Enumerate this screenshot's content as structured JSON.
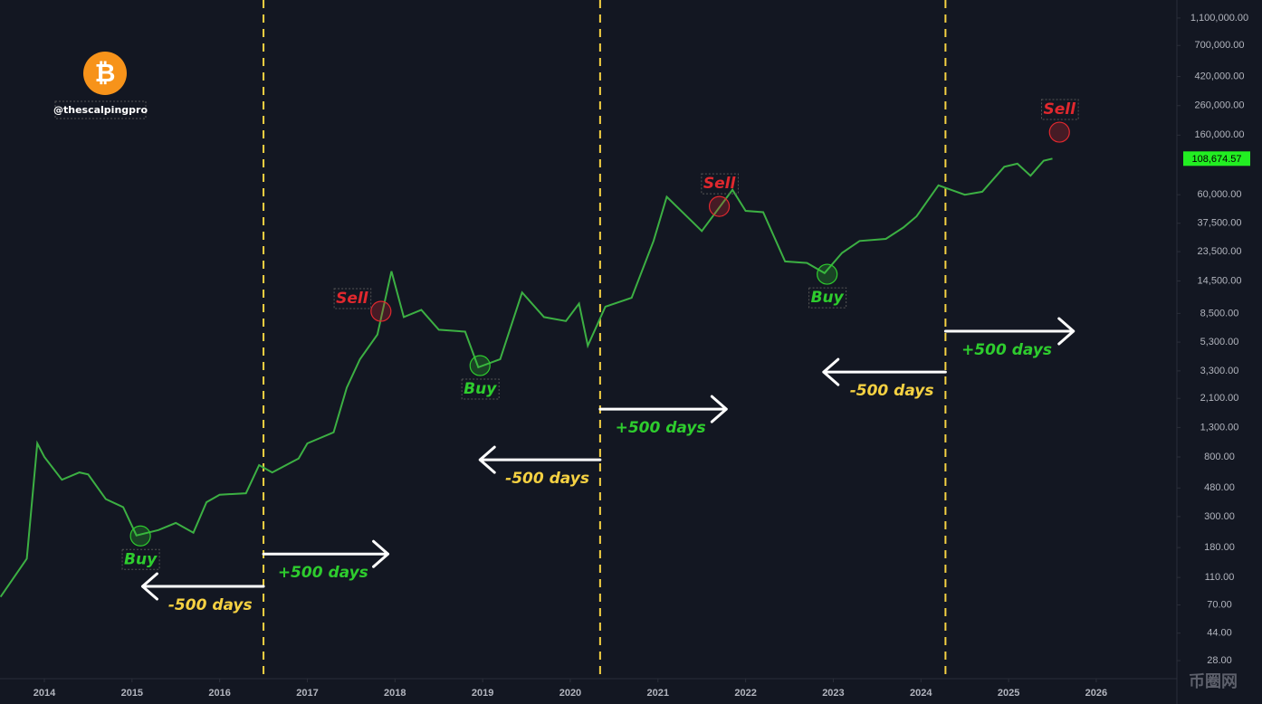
{
  "chart_data": {
    "type": "line",
    "handle": "@thescalpingpro",
    "logo_symbol": "₿",
    "watermark": "币圈网",
    "log_scale": true,
    "grid": false,
    "xlim": [
      2013.494,
      2026.92
    ],
    "xticks": [
      2014,
      2015,
      2016,
      2017,
      2018,
      2019,
      2020,
      2021,
      2022,
      2023,
      2024,
      2025,
      2026
    ],
    "ylim": [
      20.8,
      1480000
    ],
    "yticks": [
      {
        "value": 1100000,
        "label": "1,100,000.00"
      },
      {
        "value": 700000,
        "label": "700,000.00"
      },
      {
        "value": 420000,
        "label": "420,000.00"
      },
      {
        "value": 260000,
        "label": "260,000.00"
      },
      {
        "value": 160000,
        "label": "160,000.00"
      },
      {
        "value": 60000,
        "label": "60,000.00"
      },
      {
        "value": 37500,
        "label": "37,500.00"
      },
      {
        "value": 23500,
        "label": "23,500.00"
      },
      {
        "value": 14500,
        "label": "14,500.00"
      },
      {
        "value": 8500,
        "label": "8,500.00"
      },
      {
        "value": 5300,
        "label": "5,300.00"
      },
      {
        "value": 3300,
        "label": "3,300.00"
      },
      {
        "value": 2100,
        "label": "2,100.00"
      },
      {
        "value": 1300,
        "label": "1,300.00"
      },
      {
        "value": 800,
        "label": "800.00"
      },
      {
        "value": 480,
        "label": "480.00"
      },
      {
        "value": 300,
        "label": "300.00"
      },
      {
        "value": 180,
        "label": "180.00"
      },
      {
        "value": 110,
        "label": "110.00"
      },
      {
        "value": 70,
        "label": "70.00"
      },
      {
        "value": 44,
        "label": "44.00"
      },
      {
        "value": 28,
        "label": "28.00"
      }
    ],
    "last_price": {
      "value": 108674.57,
      "label": "108,674.57"
    },
    "series": [
      {
        "color": "#3cb043",
        "x": [
          2013.5,
          2013.8,
          2013.92,
          2014.0,
          2014.2,
          2014.4,
          2014.5,
          2014.7,
          2014.9,
          2015.05,
          2015.3,
          2015.5,
          2015.7,
          2015.85,
          2016.0,
          2016.3,
          2016.45,
          2016.6,
          2016.9,
          2017.0,
          2017.3,
          2017.45,
          2017.6,
          2017.8,
          2017.96,
          2018.1,
          2018.3,
          2018.5,
          2018.8,
          2018.95,
          2019.2,
          2019.45,
          2019.7,
          2019.95,
          2020.1,
          2020.2,
          2020.4,
          2020.7,
          2020.95,
          2021.1,
          2021.5,
          2021.85,
          2022.0,
          2022.2,
          2022.45,
          2022.7,
          2022.9,
          2023.1,
          2023.3,
          2023.6,
          2023.8,
          2023.95,
          2024.2,
          2024.5,
          2024.7,
          2024.95,
          2025.1,
          2025.25,
          2025.4,
          2025.5
        ],
        "values": [
          80,
          150,
          1000,
          800,
          550,
          620,
          600,
          400,
          350,
          220,
          240,
          270,
          230,
          380,
          430,
          440,
          700,
          620,
          780,
          1000,
          1200,
          2500,
          4000,
          6000,
          17000,
          8000,
          9000,
          6500,
          6300,
          3500,
          4000,
          12000,
          8000,
          7500,
          10000,
          5000,
          9500,
          11000,
          28000,
          58000,
          33000,
          65000,
          46000,
          45000,
          20000,
          19500,
          16500,
          23000,
          28000,
          29000,
          35000,
          42000,
          70000,
          60000,
          63000,
          95000,
          100000,
          82000,
          105000,
          108674.57
        ]
      }
    ],
    "halvings": [
      2016.5,
      2020.34,
      2024.28
    ],
    "halving_color": "#f5d142",
    "annotations": [
      {
        "text": "Buy",
        "x": 2015.096,
        "y": 218,
        "color": "#2ecc2e",
        "label_position": "below"
      },
      {
        "text": "Sell",
        "x": 2017.84,
        "y": 8800,
        "color": "#e0282e",
        "label_position": "left"
      },
      {
        "text": "Buy",
        "x": 2018.97,
        "y": 3600,
        "color": "#2ecc2e",
        "label_position": "below"
      },
      {
        "text": "Sell",
        "x": 2021.7,
        "y": 49500,
        "color": "#e0282e",
        "label_position": "above"
      },
      {
        "text": "Buy",
        "x": 2022.93,
        "y": 16200,
        "color": "#2ecc2e",
        "label_position": "below"
      },
      {
        "text": "Sell",
        "x": 2025.58,
        "y": 168000,
        "color": "#e0282e",
        "label_position": "above"
      }
    ],
    "arrows": [
      {
        "label": "+500 days",
        "x_start": 2016.5,
        "x_end": 2017.92,
        "y": 162,
        "color": "#2ecc2e"
      },
      {
        "label": "-500 days",
        "x_start": 2016.5,
        "x_end": 2015.12,
        "y": 95,
        "color": "#f5d142"
      },
      {
        "label": "+500 days",
        "x_start": 2020.34,
        "x_end": 2021.78,
        "y": 1760,
        "color": "#2ecc2e"
      },
      {
        "label": "-500 days",
        "x_start": 2020.34,
        "x_end": 2018.97,
        "y": 764,
        "color": "#f5d142"
      },
      {
        "label": "+500 days",
        "x_start": 2024.28,
        "x_end": 2025.74,
        "y": 6340,
        "color": "#2ecc2e"
      },
      {
        "label": "-500 days",
        "x_start": 2024.28,
        "x_end": 2022.89,
        "y": 3240,
        "color": "#f5d142"
      }
    ]
  }
}
